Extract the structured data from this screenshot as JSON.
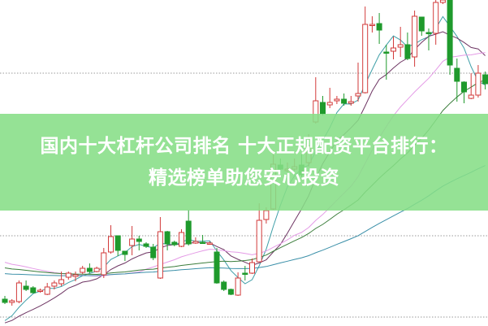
{
  "banner": {
    "line1": "国内十大杠杆公司排名 十大正规配资平台排行：",
    "line2": "精选榜单助您安心投资"
  },
  "colors": {
    "up": "#d23a3a",
    "down": "#1f9a2c",
    "banner": "#86de86",
    "grid": "#999999",
    "ma": [
      "#3f9fa8",
      "#6e3563",
      "#e49be6",
      "#3b7d3b",
      "#3a8fa8"
    ]
  },
  "chart_data": {
    "type": "candlestick",
    "title": "",
    "grid": "horizontal dotted",
    "moving_averages": [
      5,
      10,
      20,
      30,
      60
    ],
    "ylim": [
      0,
      40
    ],
    "ohlc": [
      [
        3.2,
        3.6,
        2.6,
        2.8
      ],
      [
        2.8,
        3.2,
        2.4,
        3.0
      ],
      [
        2.9,
        5.5,
        2.7,
        5.2
      ],
      [
        4.8,
        5.5,
        4.2,
        4.4
      ],
      [
        4.6,
        4.8,
        3.9,
        4.0
      ],
      [
        4.2,
        4.5,
        4.0,
        4.3
      ],
      [
        3.8,
        5.2,
        3.7,
        4.7
      ],
      [
        4.8,
        5.5,
        4.4,
        5.2
      ],
      [
        5.1,
        6.6,
        4.8,
        5.6
      ],
      [
        5.9,
        6.6,
        5.6,
        6.4
      ],
      [
        6.0,
        6.6,
        5.4,
        6.2
      ],
      [
        6.5,
        7.3,
        6.3,
        7.0
      ],
      [
        7.0,
        7.6,
        6.4,
        6.6
      ],
      [
        6.6,
        7.2,
        6.5,
        7.0
      ],
      [
        6.2,
        9.5,
        5.8,
        8.9
      ],
      [
        9.0,
        12.3,
        8.8,
        10.9
      ],
      [
        11.0,
        11.0,
        8.5,
        9.2
      ],
      [
        9.1,
        9.1,
        7.9,
        8.7
      ],
      [
        9.8,
        12.2,
        8.6,
        10.6
      ],
      [
        10.6,
        11.0,
        9.2,
        10.3
      ],
      [
        10.0,
        10.2,
        9.5,
        9.7
      ],
      [
        9.6,
        10.0,
        8.0,
        8.3
      ],
      [
        5.8,
        13.3,
        5.7,
        11.5
      ],
      [
        11.5,
        11.6,
        9.2,
        10.0
      ],
      [
        10.2,
        10.4,
        9.7,
        9.9
      ],
      [
        9.7,
        11.8,
        9.6,
        11.4
      ],
      [
        12.8,
        14.2,
        9.8,
        10.0
      ],
      [
        10.1,
        10.8,
        10.0,
        10.3
      ],
      [
        10.2,
        11.1,
        10.0,
        10.1
      ],
      [
        10.0,
        10.3,
        9.9,
        10.1
      ],
      [
        9.0,
        9.5,
        5.1,
        5.2
      ],
      [
        5.3,
        5.5,
        4.2,
        4.4
      ],
      [
        4.4,
        4.5,
        3.7,
        3.8
      ],
      [
        3.7,
        6.5,
        3.6,
        5.8
      ],
      [
        6.4,
        7.3,
        5.5,
        6.3
      ],
      [
        6.4,
        8.2,
        6.3,
        7.7
      ],
      [
        7.8,
        15.0,
        7.8,
        12.9
      ],
      [
        13.0,
        14.5,
        12.5,
        14.1
      ],
      [
        14.3,
        21.5,
        14.2,
        19.8
      ],
      [
        19.7,
        20.5,
        18.5,
        19.2
      ],
      [
        19.0,
        20.0,
        18.8,
        19.2
      ],
      [
        19.2,
        20.5,
        19.0,
        19.5
      ],
      [
        19.7,
        21.0,
        18.2,
        18.5
      ],
      [
        20.0,
        23.5,
        19.5,
        22.0
      ],
      [
        25.0,
        30.5,
        24.8,
        27.6
      ],
      [
        27.4,
        28.2,
        25.8,
        26.0
      ],
      [
        27.1,
        29.2,
        26.7,
        27.4
      ],
      [
        27.6,
        28.2,
        27.2,
        27.8
      ],
      [
        27.8,
        28.5,
        27.0,
        27.3
      ],
      [
        27.3,
        28.2,
        27.0,
        27.5
      ],
      [
        28.2,
        32.3,
        27.5,
        28.5
      ],
      [
        28.6,
        39.2,
        28.5,
        37.0
      ],
      [
        36.9,
        38.0,
        36.0,
        37.0
      ],
      [
        37.1,
        38.4,
        34.6,
        36.3
      ],
      [
        33.6,
        34.5,
        30.2,
        33.5
      ],
      [
        33.7,
        35.5,
        32.7,
        34.1
      ],
      [
        34.2,
        36.7,
        33.0,
        34.5
      ],
      [
        34.5,
        36.0,
        32.6,
        32.8
      ],
      [
        33.0,
        38.7,
        31.8,
        38.0
      ],
      [
        37.9,
        37.9,
        35.6,
        36.2
      ],
      [
        36.0,
        36.5,
        33.8,
        35.9
      ],
      [
        35.9,
        40.0,
        34.5,
        39.7
      ],
      [
        39.7,
        40.0,
        39.5,
        40.0
      ],
      [
        40.0,
        40.0,
        30.8,
        32.0
      ],
      [
        31.6,
        32.8,
        27.5,
        30.0
      ],
      [
        29.9,
        30.0,
        27.3,
        28.7
      ],
      [
        27.9,
        31.0,
        27.8,
        28.3
      ],
      [
        28.3,
        32.0,
        28.0,
        31.0
      ],
      [
        30.8,
        31.2,
        29.0,
        29.7
      ]
    ]
  }
}
